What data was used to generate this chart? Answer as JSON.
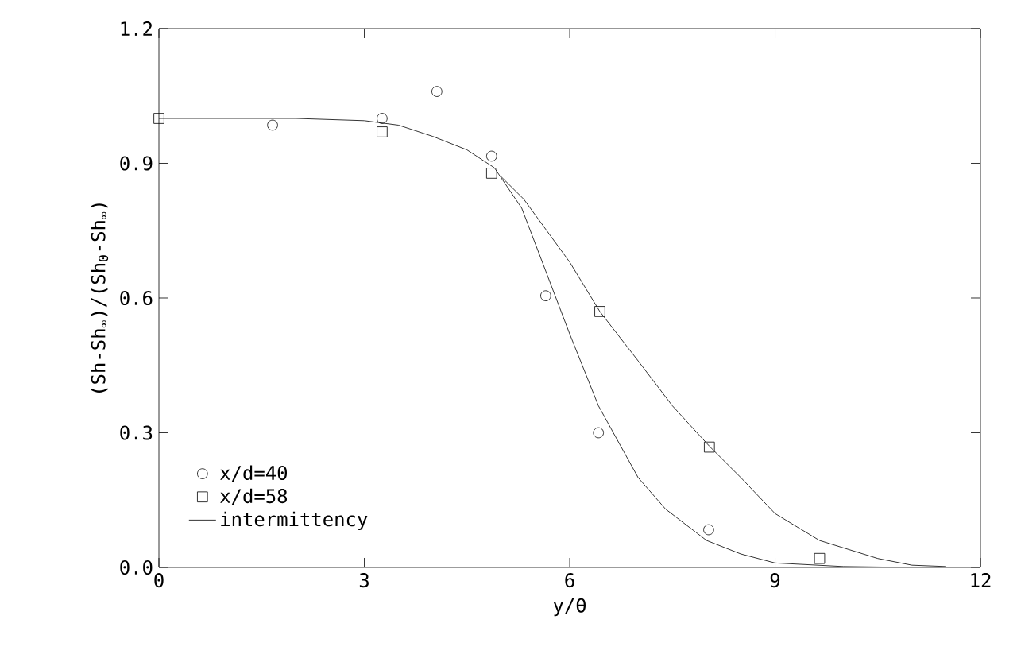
{
  "chart_data": {
    "type": "scatter",
    "xlabel": "y/θ",
    "ylabel": "(Sh-Sh$_{∞}$)/(Sh$_{0}$-Sh$_{∞}$)",
    "xlim": [
      0,
      12
    ],
    "ylim": [
      0,
      1.2
    ],
    "xticks": [
      0,
      3,
      6,
      9,
      12
    ],
    "yticks": [
      {
        "value": 0,
        "label": "0.0"
      },
      0.3,
      0.6,
      0.9,
      1.2
    ],
    "grid": false,
    "legend": "bottom left",
    "series": [
      {
        "name": "x/d=40",
        "type": "scatter",
        "marker": "circle",
        "color": "#000000",
        "x": [
          1.66,
          3.26,
          4.06,
          4.86,
          5.65,
          6.42,
          8.03
        ],
        "values": [
          0.985,
          1.0,
          1.06,
          0.916,
          0.605,
          0.3,
          0.084
        ]
      },
      {
        "name": "x/d=58",
        "type": "scatter",
        "marker": "square",
        "color": "#000000",
        "x": [
          0,
          3.26,
          4.86,
          6.44,
          8.04,
          9.65
        ],
        "values": [
          1.0,
          0.97,
          0.878,
          0.57,
          0.268,
          0.02
        ]
      },
      {
        "name": "intermittency",
        "type": "line",
        "marker": "none",
        "line_style": "solid",
        "color": "#000000",
        "x": [
          0,
          2,
          3,
          3.5,
          4,
          4.5,
          4.9,
          5.3,
          5.65,
          6,
          6.42,
          7,
          7.4,
          8,
          8.5,
          9,
          10,
          11,
          12
        ],
        "values": [
          1.0,
          1.0,
          0.995,
          0.985,
          0.96,
          0.93,
          0.89,
          0.8,
          0.66,
          0.52,
          0.36,
          0.2,
          0.13,
          0.06,
          0.03,
          0.01,
          0.002,
          0,
          0
        ]
      },
      {
        "type": "line",
        "marker": "none",
        "line_style": "solid",
        "color": "#000000",
        "x": [
          5.0,
          5.33,
          6,
          6.44,
          7,
          7.5,
          8.04,
          8.5,
          9,
          9.65,
          10.5,
          11,
          11.5
        ],
        "values": [
          0.87,
          0.82,
          0.68,
          0.57,
          0.46,
          0.36,
          0.27,
          0.2,
          0.12,
          0.06,
          0.02,
          0.005,
          0.002
        ]
      }
    ]
  }
}
